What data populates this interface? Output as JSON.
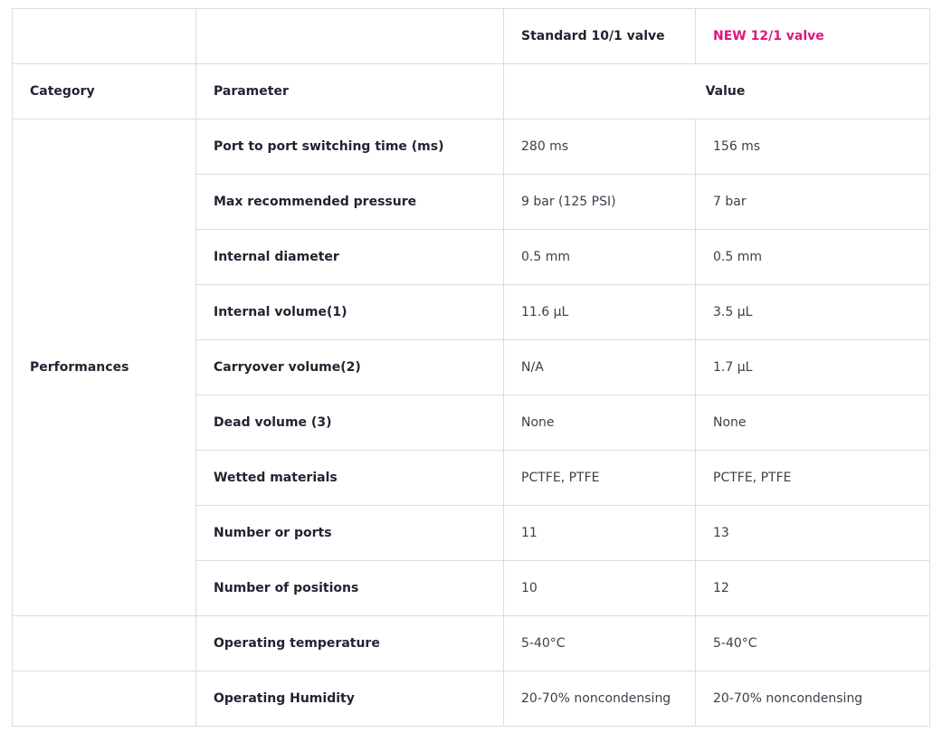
{
  "colors": {
    "accent": "#e0157f",
    "border": "#dcdcdc",
    "text": "#2b2f38"
  },
  "table": {
    "top_headers": {
      "standard": "Standard 10/1 valve",
      "new": "NEW 12/1 valve"
    },
    "column_headers": {
      "category": "Category",
      "parameter": "Parameter",
      "value": "Value"
    },
    "performances_label": "Performances",
    "rows": [
      {
        "parameter": "Port to port switching time (ms)",
        "standard": "280 ms",
        "new": "156 ms"
      },
      {
        "parameter": "Max recommended pressure",
        "standard": "9 bar (125 PSI)",
        "new": "7 bar"
      },
      {
        "parameter": "Internal diameter",
        "standard": "0.5 mm",
        "new": "0.5 mm"
      },
      {
        "parameter": "Internal volume(1)",
        "standard": "11.6 µL",
        "new": "3.5 µL"
      },
      {
        "parameter": "Carryover volume(2)",
        "standard": "N/A",
        "new": "1.7 µL"
      },
      {
        "parameter": "Dead volume (3)",
        "standard": "None",
        "new": "None"
      },
      {
        "parameter": "Wetted materials",
        "standard": "PCTFE, PTFE",
        "new": "PCTFE, PTFE"
      },
      {
        "parameter": "Number or ports",
        "standard": "11",
        "new": "13"
      },
      {
        "parameter": "Number of positions",
        "standard": "10",
        "new": "12"
      },
      {
        "parameter": "Operating temperature",
        "standard": "5-40°C",
        "new": "5-40°C"
      },
      {
        "parameter": "Operating Humidity",
        "standard": "20-70% noncondensing",
        "new": "20-70% noncondensing"
      }
    ]
  }
}
